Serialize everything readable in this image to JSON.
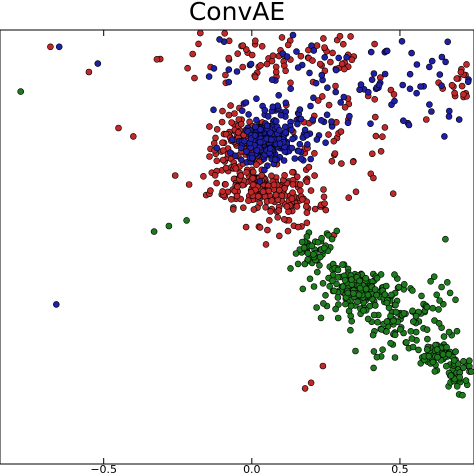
{
  "chart_data": {
    "type": "scatter",
    "title": "ConvAE",
    "xlabel": "",
    "ylabel": "",
    "xlim": [
      -0.85,
      0.75
    ],
    "ylim": [
      -0.95,
      0.6
    ],
    "x_ticks": [
      -0.5,
      0.0,
      0.5
    ],
    "x_tick_labels": [
      "−0.5",
      "0.0",
      "0.5"
    ],
    "grid": false,
    "legend": "none",
    "series": [
      {
        "color": "#c0282a",
        "clusters": [
          {
            "center": [
              -0.04,
              0.18
            ],
            "spread": [
              0.05,
              0.06
            ],
            "count": 120
          },
          {
            "center": [
              0.02,
              0.04
            ],
            "spread": [
              0.08,
              0.035
            ],
            "count": 140
          },
          {
            "center": [
              0.12,
              -0.03
            ],
            "spread": [
              0.07,
              0.04
            ],
            "count": 70
          },
          {
            "center": [
              0.1,
              0.5
            ],
            "spread": [
              0.2,
              0.06
            ],
            "count": 80
          },
          {
            "center": [
              0.3,
              0.2
            ],
            "spread": [
              0.12,
              0.12
            ],
            "count": 60
          },
          {
            "center": [
              0.72,
              0.42
            ],
            "spread": [
              0.04,
              0.04
            ],
            "count": 25
          }
        ],
        "points": [
          [
            -0.85,
            0.54
          ],
          [
            -0.68,
            0.54
          ],
          [
            -0.45,
            0.25
          ],
          [
            -0.4,
            0.22
          ],
          [
            -0.55,
            0.45
          ],
          [
            0.18,
            -0.68
          ],
          [
            0.2,
            -0.66
          ],
          [
            0.24,
            -0.6
          ]
        ]
      },
      {
        "color": "#1f1fa8",
        "clusters": [
          {
            "center": [
              0.05,
              0.2
            ],
            "spread": [
              0.04,
              0.035
            ],
            "count": 200
          },
          {
            "center": [
              0.08,
              0.25
            ],
            "spread": [
              0.08,
              0.06
            ],
            "count": 90
          },
          {
            "center": [
              0.35,
              0.42
            ],
            "spread": [
              0.22,
              0.1
            ],
            "count": 90
          }
        ],
        "points": [
          [
            -0.65,
            0.54
          ],
          [
            -0.52,
            0.48
          ],
          [
            -0.66,
            -0.38
          ],
          [
            0.65,
            0.22
          ],
          [
            0.7,
            0.28
          ]
        ]
      },
      {
        "color": "#1d7a1d",
        "clusters": [
          {
            "center": [
              0.22,
              -0.2
            ],
            "spread": [
              0.04,
              0.04
            ],
            "count": 60
          },
          {
            "center": [
              0.36,
              -0.33
            ],
            "spread": [
              0.05,
              0.035
            ],
            "count": 160
          },
          {
            "center": [
              0.5,
              -0.46
            ],
            "spread": [
              0.07,
              0.05
            ],
            "count": 70
          },
          {
            "center": [
              0.62,
              -0.56
            ],
            "spread": [
              0.025,
              0.025
            ],
            "count": 60
          },
          {
            "center": [
              0.7,
              -0.63
            ],
            "spread": [
              0.03,
              0.03
            ],
            "count": 40
          },
          {
            "center": [
              0.55,
              -0.38
            ],
            "spread": [
              0.12,
              0.08
            ],
            "count": 50
          }
        ],
        "points": [
          [
            -0.78,
            0.38
          ],
          [
            -0.33,
            -0.12
          ],
          [
            -0.28,
            -0.1
          ],
          [
            -0.22,
            -0.08
          ]
        ]
      }
    ]
  }
}
